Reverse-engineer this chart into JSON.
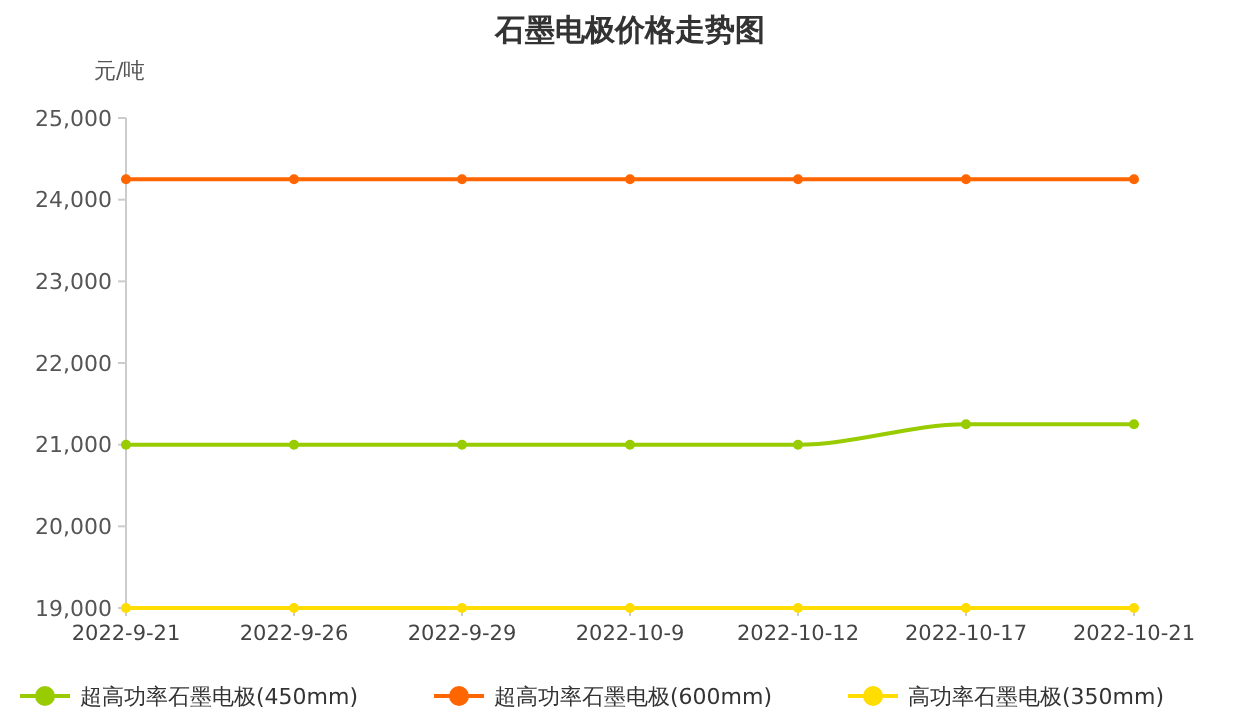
{
  "chart_data": {
    "type": "line",
    "title": "石墨电极价格走势图",
    "ylabel": "元/吨",
    "categories": [
      "2022-9-21",
      "2022-9-26",
      "2022-9-29",
      "2022-10-9",
      "2022-10-12",
      "2022-10-17",
      "2022-10-21"
    ],
    "series": [
      {
        "name": "超高功率石墨电极(450mm)",
        "color": "#99cc00",
        "values": [
          21000,
          21000,
          21000,
          21000,
          21000,
          21250,
          21250
        ]
      },
      {
        "name": "超高功率石墨电极(600mm)",
        "color": "#ff6600",
        "values": [
          24250,
          24250,
          24250,
          24250,
          24250,
          24250,
          24250
        ]
      },
      {
        "name": "高功率石墨电极(350mm)",
        "color": "#ffdd00",
        "values": [
          19000,
          19000,
          19000,
          19000,
          19000,
          19000,
          19000
        ]
      }
    ],
    "ylim": [
      19000,
      25000
    ],
    "yticks": [
      {
        "value": 19000,
        "label": "19,000"
      },
      {
        "value": 20000,
        "label": "20,000"
      },
      {
        "value": 21000,
        "label": "21,000"
      },
      {
        "value": 22000,
        "label": "22,000"
      },
      {
        "value": 23000,
        "label": "23,000"
      },
      {
        "value": 24000,
        "label": "24,000"
      },
      {
        "value": 25000,
        "label": "25,000"
      }
    ],
    "legend": "bottom",
    "marker": "circle",
    "line_style": "solid",
    "grid": false
  }
}
